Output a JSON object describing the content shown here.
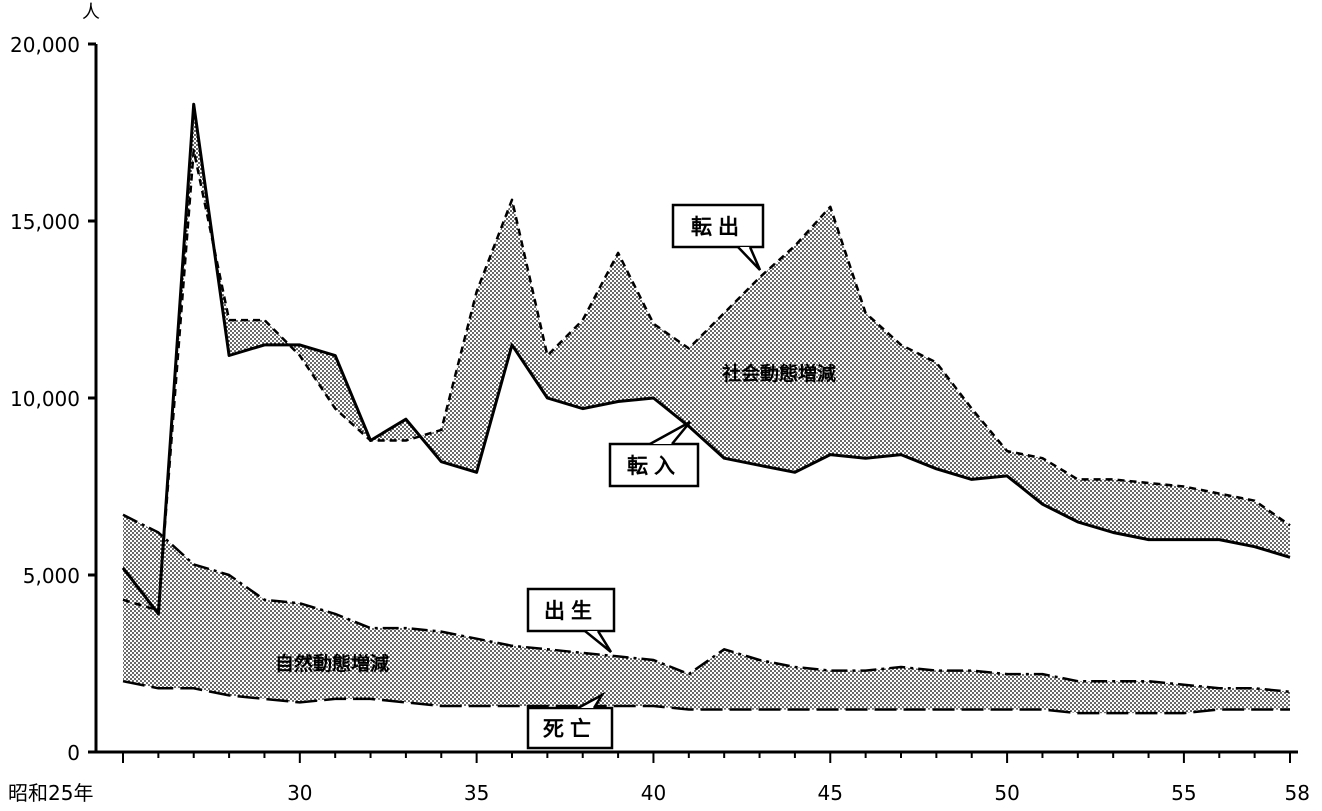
{
  "chart_data": {
    "type": "line",
    "x": [
      25,
      26,
      27,
      28,
      29,
      30,
      31,
      32,
      33,
      34,
      35,
      36,
      37,
      38,
      39,
      40,
      41,
      42,
      43,
      44,
      45,
      46,
      47,
      48,
      49,
      50,
      51,
      52,
      53,
      54,
      55,
      56,
      57,
      58
    ],
    "x_tick_values": [
      25,
      30,
      35,
      40,
      45,
      50,
      55,
      58
    ],
    "x_tick_labels": [
      "昭和25年",
      "30",
      "35",
      "40",
      "45",
      "50",
      "55",
      "58"
    ],
    "y_unit": "人",
    "ylim": [
      0,
      20000
    ],
    "y_ticks": [
      0,
      5000,
      10000,
      15000,
      20000
    ],
    "y_tick_labels": [
      "0",
      "5,000",
      "10,000",
      "15,000",
      "20,000"
    ],
    "grid": false,
    "series": [
      {
        "name": "転入",
        "style": "solid",
        "values": [
          5200,
          3900,
          18300,
          11200,
          11500,
          11500,
          11200,
          8800,
          9400,
          8200,
          7900,
          11500,
          10000,
          9700,
          9900,
          10000,
          9200,
          8300,
          8100,
          7900,
          8400,
          8300,
          8400,
          8000,
          7700,
          7800,
          7000,
          6500,
          6200,
          6000,
          6000,
          6000,
          5800,
          5500
        ]
      },
      {
        "name": "転出",
        "style": "dashed",
        "values": [
          4300,
          4000,
          17000,
          12200,
          12200,
          11200,
          9700,
          8800,
          8800,
          9100,
          13000,
          15600,
          11200,
          12200,
          14100,
          12100,
          11400,
          12400,
          13400,
          14300,
          15400,
          12400,
          11500,
          11000,
          9700,
          8500,
          8300,
          7700,
          7700,
          7600,
          7500,
          7300,
          7100,
          6400
        ]
      },
      {
        "name": "出生",
        "style": "dashdot",
        "values": [
          6700,
          6200,
          5300,
          5000,
          4300,
          4200,
          3900,
          3500,
          3500,
          3400,
          3200,
          3000,
          2900,
          2800,
          2700,
          2600,
          2200,
          2900,
          2600,
          2400,
          2300,
          2300,
          2400,
          2300,
          2300,
          2200,
          2200,
          2000,
          2000,
          2000,
          1900,
          1800,
          1800,
          1700
        ]
      },
      {
        "name": "死亡",
        "style": "longdash",
        "values": [
          2000,
          1800,
          1800,
          1600,
          1500,
          1400,
          1500,
          1500,
          1400,
          1300,
          1300,
          1300,
          1300,
          1300,
          1300,
          1300,
          1200,
          1200,
          1200,
          1200,
          1200,
          1200,
          1200,
          1200,
          1200,
          1200,
          1200,
          1100,
          1100,
          1100,
          1100,
          1200,
          1200,
          1200
        ]
      }
    ],
    "areas": [
      {
        "label": "社会動態増減",
        "between": [
          "転入",
          "転出"
        ]
      },
      {
        "label": "自然動態増減",
        "between": [
          "出生",
          "死亡"
        ]
      }
    ],
    "legend": "callout labels"
  },
  "colors": {
    "ink": "#000000",
    "background": "#ffffff",
    "stipple": "#000000"
  }
}
